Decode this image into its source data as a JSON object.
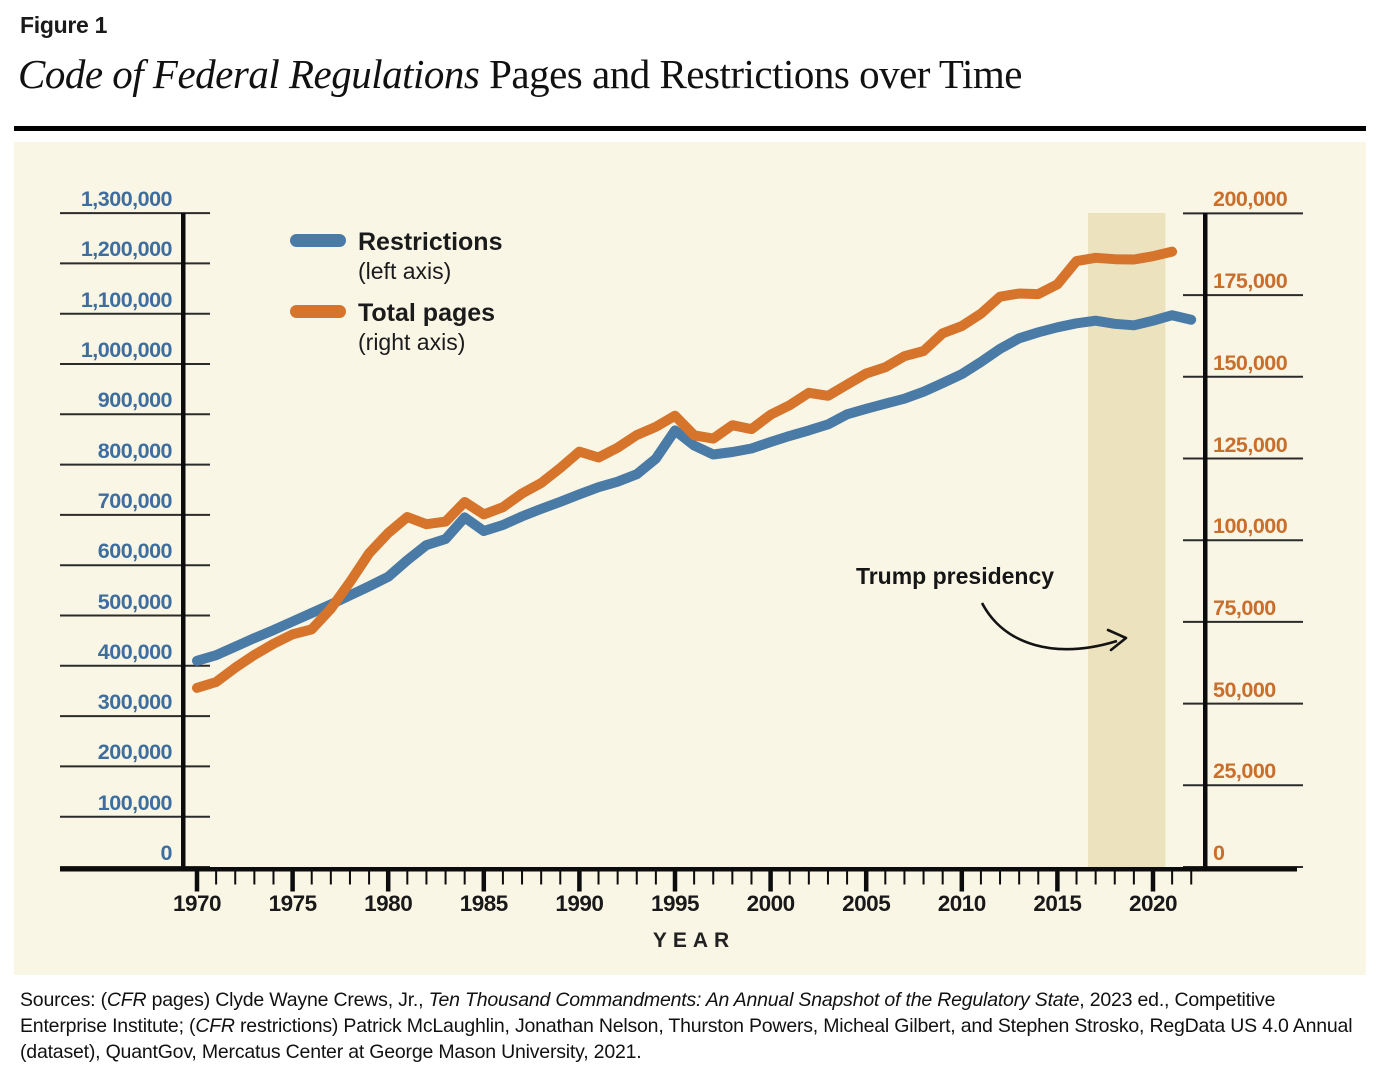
{
  "figure": {
    "kicker": "Figure 1",
    "title_italic": "Code of Federal Regulations",
    "title_rest": " Pages and Restrictions over Time"
  },
  "legend": {
    "items": [
      {
        "label": "Restrictions",
        "sublabel": "(left axis)",
        "color": "#4A7AA6"
      },
      {
        "label": "Total pages",
        "sublabel": "(right axis)",
        "color": "#D6742C"
      }
    ]
  },
  "annotation": {
    "trump_label": "Trump presidency"
  },
  "axes": {
    "left": {
      "color": "#3E6E9E",
      "ticks": [
        {
          "label": "1,300,000",
          "value": 1300000
        },
        {
          "label": "1,200,000",
          "value": 1200000
        },
        {
          "label": "1,100,000",
          "value": 1100000
        },
        {
          "label": "1,000,000",
          "value": 1000000
        },
        {
          "label": "900,000",
          "value": 900000
        },
        {
          "label": "800,000",
          "value": 800000
        },
        {
          "label": "700,000",
          "value": 700000
        },
        {
          "label": "600,000",
          "value": 600000
        },
        {
          "label": "500,000",
          "value": 500000
        },
        {
          "label": "400,000",
          "value": 400000
        },
        {
          "label": "300,000",
          "value": 300000
        },
        {
          "label": "200,000",
          "value": 200000
        },
        {
          "label": "100,000",
          "value": 100000
        },
        {
          "label": "0",
          "value": 0
        }
      ]
    },
    "right": {
      "color": "#C96E2B",
      "ticks": [
        {
          "label": "200,000",
          "value": 200000
        },
        {
          "label": "175,000",
          "value": 175000
        },
        {
          "label": "150,000",
          "value": 150000
        },
        {
          "label": "125,000",
          "value": 125000
        },
        {
          "label": "100,000",
          "value": 100000
        },
        {
          "label": "75,000",
          "value": 75000
        },
        {
          "label": "50,000",
          "value": 50000
        },
        {
          "label": "25,000",
          "value": 25000
        },
        {
          "label": "0",
          "value": 0
        }
      ]
    },
    "x": {
      "label": "YEAR",
      "major_ticks": [
        1970,
        1975,
        1980,
        1985,
        1990,
        1995,
        2000,
        2005,
        2010,
        2015,
        2020
      ],
      "minor_tick_start": 1970,
      "minor_tick_end": 2022
    }
  },
  "chart_data": {
    "type": "line",
    "dual_axis": true,
    "title": "Code of Federal Regulations Pages and Restrictions over Time",
    "xlabel": "YEAR",
    "left_axis_range": [
      0,
      1300000
    ],
    "right_axis_range": [
      0,
      200000
    ],
    "x_axis_range": [
      1970,
      2022
    ],
    "grid": false,
    "legend_position": "top-left-inside",
    "trump_band": {
      "label": "Trump presidency",
      "start_year": 2016.6,
      "end_year": 2020.65,
      "color": "#ECE2BD"
    },
    "series": [
      {
        "name": "Restrictions (left axis)",
        "axis": "left",
        "color": "#4A7AA6",
        "start_year": 1970,
        "values": [
          410000,
          421000,
          438000,
          455000,
          471000,
          488000,
          505000,
          522000,
          540000,
          558000,
          577000,
          610000,
          640000,
          652000,
          695000,
          668000,
          680000,
          697000,
          712000,
          726000,
          741000,
          755000,
          766000,
          781000,
          812000,
          868000,
          838000,
          820000,
          825000,
          832000,
          845000,
          857000,
          868000,
          880000,
          900000,
          911000,
          921000,
          931000,
          945000,
          962000,
          980000,
          1004000,
          1030000,
          1051000,
          1063000,
          1073000,
          1081000,
          1086000,
          1080000,
          1077000,
          1086000,
          1097000,
          1088000
        ]
      },
      {
        "name": "Total pages (right axis)",
        "axis": "right",
        "color": "#D6742C",
        "start_year": 1970,
        "values": [
          54800,
          56600,
          61000,
          64900,
          68300,
          71200,
          72700,
          79000,
          87200,
          96000,
          102200,
          107100,
          104900,
          105700,
          111700,
          107900,
          110100,
          114300,
          117500,
          122100,
          127100,
          125300,
          128300,
          132200,
          134700,
          138100,
          132100,
          131100,
          135200,
          134000,
          138400,
          141300,
          145100,
          144200,
          147600,
          151000,
          152900,
          156300,
          157900,
          163300,
          165500,
          169300,
          174500,
          175500,
          175300,
          178300,
          185400,
          186400,
          186000,
          185900,
          186900,
          188300
        ]
      }
    ]
  },
  "sources": {
    "segments": [
      {
        "text": "Sources: (",
        "italic": false
      },
      {
        "text": "CFR",
        "italic": true
      },
      {
        "text": " pages) Clyde Wayne Crews, Jr., ",
        "italic": false
      },
      {
        "text": "Ten Thousand Commandments: An Annual Snapshot of the Regulatory State",
        "italic": true
      },
      {
        "text": ", 2023 ed., Competitive Enterprise Institute; (",
        "italic": false
      },
      {
        "text": "CFR",
        "italic": true
      },
      {
        "text": " restrictions) Patrick McLaughlin, Jonathan Nelson, Thurston Powers, Micheal Gilbert, and Stephen Strosko, RegData US 4.0 Annual (dataset), QuantGov, Mercatus Center at George Mason University, 2021.",
        "italic": false
      }
    ]
  }
}
